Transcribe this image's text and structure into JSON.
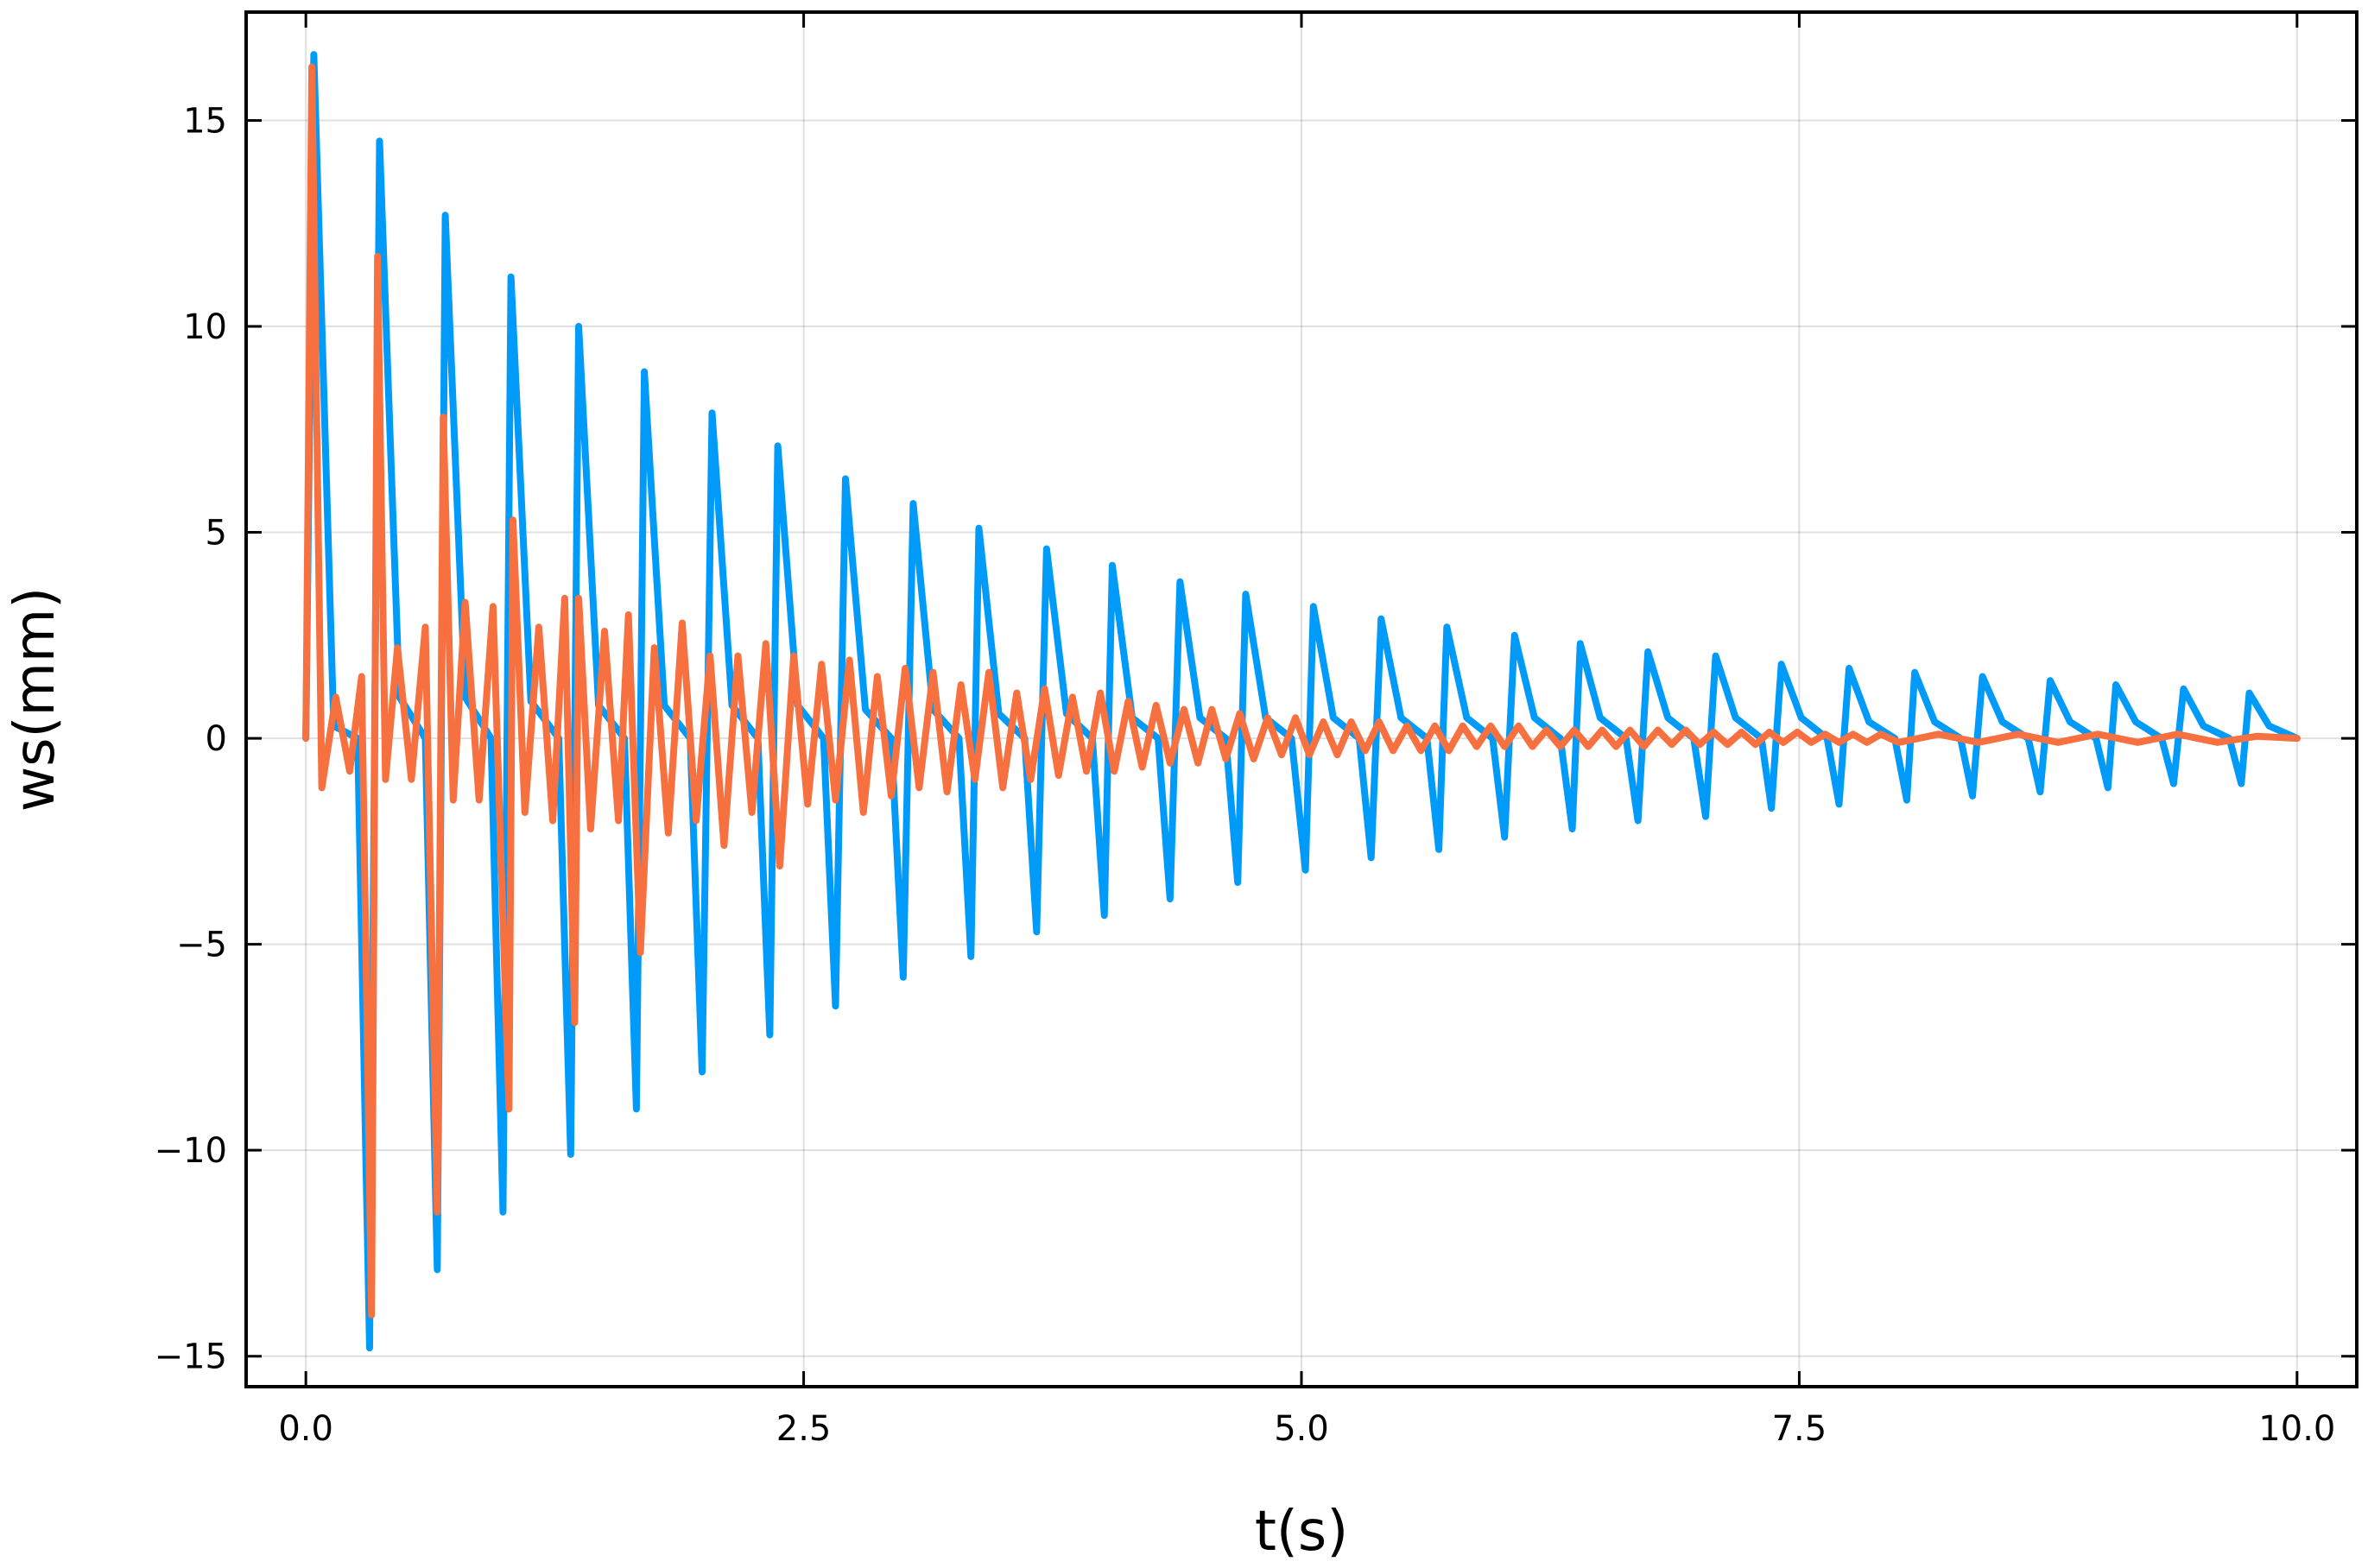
{
  "chart_data": {
    "type": "line",
    "xlabel": "t(s)",
    "ylabel": "ws(mm)",
    "xlim": [
      -0.3,
      10.3
    ],
    "ylim": [
      -15.74,
      17.63
    ],
    "xticks": [
      {
        "value": 0,
        "label": "0.0"
      },
      2.5,
      {
        "value": 5,
        "label": "5.0"
      },
      7.5,
      {
        "value": 10,
        "label": "10.0"
      }
    ],
    "yticks": [
      {
        "value": -15,
        "label": "−15"
      },
      {
        "value": -10,
        "label": "−10"
      },
      {
        "value": -5,
        "label": "−5"
      },
      0,
      5,
      10,
      15
    ],
    "grid": true,
    "series": [
      {
        "color": "#009af9",
        "x": [
          0,
          0.04,
          0.14,
          0.26,
          0.32,
          0.37,
          0.47,
          0.6,
          0.66,
          0.7,
          0.8,
          0.93,
          0.99,
          1.03,
          1.13,
          1.27,
          1.33,
          1.37,
          1.47,
          1.6,
          1.66,
          1.7,
          1.8,
          1.93,
          1.99,
          2.04,
          2.14,
          2.27,
          2.33,
          2.37,
          2.47,
          2.6,
          2.66,
          2.71,
          2.81,
          2.94,
          3.0,
          3.05,
          3.15,
          3.28,
          3.34,
          3.38,
          3.48,
          3.61,
          3.67,
          3.72,
          3.82,
          3.95,
          4.01,
          4.05,
          4.15,
          4.28,
          4.34,
          4.39,
          4.49,
          4.62,
          4.68,
          4.72,
          4.82,
          4.95,
          5.02,
          5.06,
          5.16,
          5.29,
          5.35,
          5.4,
          5.5,
          5.63,
          5.69,
          5.73,
          5.83,
          5.96,
          6.02,
          6.07,
          6.17,
          6.3,
          6.36,
          6.4,
          6.5,
          6.63,
          6.69,
          6.74,
          6.84,
          6.97,
          7.03,
          7.08,
          7.18,
          7.31,
          7.36,
          7.41,
          7.51,
          7.64,
          7.7,
          7.75,
          7.85,
          7.98,
          8.04,
          8.08,
          8.18,
          8.31,
          8.37,
          8.42,
          8.52,
          8.65,
          8.71,
          8.76,
          8.86,
          8.99,
          9.05,
          9.09,
          9.19,
          9.32,
          9.38,
          9.43,
          9.53,
          9.66,
          9.72,
          9.76,
          9.86,
          10.0
        ],
        "values": [
          0,
          16.6,
          0.3,
          0,
          -14.8,
          14.5,
          1,
          0,
          -12.9,
          12.7,
          1,
          0,
          -11.5,
          11.2,
          0.9,
          0,
          -10.1,
          10.0,
          0.8,
          0,
          -9.0,
          8.9,
          0.8,
          0,
          -8.1,
          7.9,
          0.8,
          0,
          -7.2,
          7.1,
          0.8,
          0,
          -6.5,
          6.3,
          0.7,
          0,
          -5.8,
          5.7,
          0.7,
          0,
          -5.3,
          5.1,
          0.6,
          0,
          -4.7,
          4.6,
          0.6,
          0,
          -4.3,
          4.2,
          0.5,
          0,
          -3.9,
          3.8,
          0.5,
          0,
          -3.5,
          3.5,
          0.5,
          0,
          -3.2,
          3.2,
          0.5,
          0,
          -2.9,
          2.9,
          0.5,
          0,
          -2.7,
          2.7,
          0.5,
          0,
          -2.4,
          2.5,
          0.5,
          0,
          -2.2,
          2.3,
          0.5,
          0,
          -2.0,
          2.1,
          0.5,
          0,
          -1.9,
          2.0,
          0.5,
          0,
          -1.7,
          1.8,
          0.5,
          0,
          -1.6,
          1.7,
          0.4,
          0,
          -1.5,
          1.6,
          0.4,
          0,
          -1.4,
          1.5,
          0.4,
          0,
          -1.3,
          1.4,
          0.4,
          0,
          -1.2,
          1.3,
          0.4,
          0,
          -1.1,
          1.2,
          0.3,
          0,
          -1.1,
          1.1,
          0.3,
          0
        ]
      },
      {
        "color": "#f7703f",
        "x": [
          0,
          0.03,
          0.08,
          0.15,
          0.22,
          0.28,
          0.33,
          0.36,
          0.4,
          0.46,
          0.53,
          0.6,
          0.66,
          0.69,
          0.74,
          0.8,
          0.87,
          0.94,
          1.02,
          1.04,
          1.1,
          1.17,
          1.24,
          1.3,
          1.35,
          1.37,
          1.43,
          1.5,
          1.57,
          1.62,
          1.68,
          1.75,
          1.82,
          1.89,
          1.96,
          2.03,
          2.1,
          2.17,
          2.24,
          2.31,
          2.38,
          2.45,
          2.52,
          2.59,
          2.66,
          2.73,
          2.8,
          2.87,
          2.94,
          3.01,
          3.08,
          3.15,
          3.22,
          3.29,
          3.36,
          3.43,
          3.5,
          3.57,
          3.64,
          3.71,
          3.78,
          3.85,
          3.92,
          3.99,
          4.06,
          4.13,
          4.2,
          4.27,
          4.34,
          4.41,
          4.48,
          4.55,
          4.62,
          4.69,
          4.76,
          4.83,
          4.9,
          4.97,
          5.04,
          5.11,
          5.18,
          5.25,
          5.32,
          5.39,
          5.46,
          5.53,
          5.6,
          5.67,
          5.74,
          5.81,
          5.88,
          5.95,
          6.02,
          6.09,
          6.16,
          6.23,
          6.3,
          6.37,
          6.44,
          6.51,
          6.58,
          6.65,
          6.72,
          6.79,
          6.86,
          6.93,
          7.0,
          7.07,
          7.14,
          7.21,
          7.28,
          7.35,
          7.42,
          7.49,
          7.56,
          7.63,
          7.7,
          7.77,
          7.84,
          7.91,
          8.0,
          8.2,
          8.4,
          8.6,
          8.8,
          9.0,
          9.2,
          9.4,
          9.6,
          9.8,
          10.0
        ],
        "values": [
          0,
          16.3,
          -1.2,
          1.0,
          -0.8,
          1.5,
          -14.0,
          11.7,
          -1.0,
          2.2,
          -1.0,
          2.7,
          -11.5,
          7.8,
          -1.5,
          3.3,
          -1.5,
          3.2,
          -9.0,
          5.3,
          -1.8,
          2.7,
          -2.0,
          3.4,
          -6.9,
          3.4,
          -2.2,
          2.6,
          -2.0,
          3.0,
          -5.2,
          2.2,
          -2.3,
          2.8,
          -2.0,
          2.0,
          -2.6,
          2.0,
          -1.8,
          2.3,
          -3.1,
          2.0,
          -1.6,
          1.8,
          -1.5,
          1.9,
          -1.8,
          1.5,
          -1.4,
          1.7,
          -1.2,
          1.6,
          -1.3,
          1.3,
          -1.0,
          1.6,
          -1.2,
          1.1,
          -1.0,
          1.2,
          -0.9,
          1.0,
          -0.8,
          1.1,
          -0.8,
          0.9,
          -0.7,
          0.8,
          -0.6,
          0.7,
          -0.6,
          0.7,
          -0.5,
          0.6,
          -0.5,
          0.5,
          -0.4,
          0.5,
          -0.4,
          0.4,
          -0.4,
          0.4,
          -0.3,
          0.4,
          -0.3,
          0.3,
          -0.3,
          0.3,
          -0.3,
          0.3,
          -0.2,
          0.3,
          -0.2,
          0.3,
          -0.2,
          0.2,
          -0.2,
          0.2,
          -0.2,
          0.2,
          -0.2,
          0.2,
          -0.2,
          0.2,
          -0.15,
          0.2,
          -0.15,
          0.15,
          -0.15,
          0.15,
          -0.15,
          0.15,
          -0.1,
          0.15,
          -0.1,
          0.1,
          -0.1,
          0.1,
          -0.1,
          0.1,
          -0.1,
          0.1,
          -0.1,
          0.1,
          -0.1,
          0.1,
          -0.1,
          0.1,
          -0.1,
          0.05,
          0
        ]
      }
    ]
  }
}
